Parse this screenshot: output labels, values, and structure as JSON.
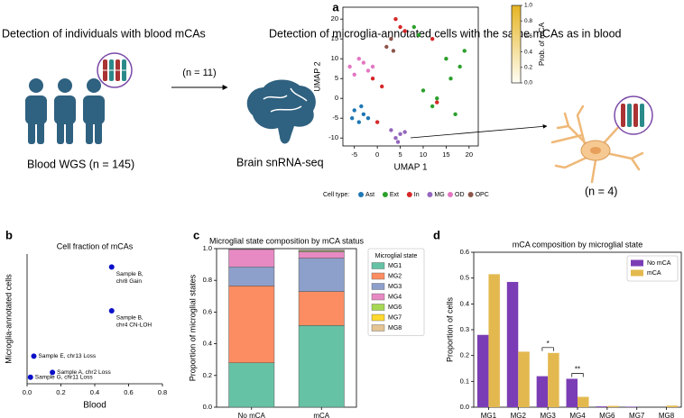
{
  "panel_labels": [
    "a",
    "b",
    "c",
    "d"
  ],
  "panel_a": {
    "left_heading": "Detection of individuals with blood mCAs",
    "right_heading": "Detection of microglia-annotated cells with the same mCAs as in blood",
    "blood_label": "Blood WGS (n = 145)",
    "arrow_label": "(n = 11)",
    "brain_label": "Brain snRNA-seq",
    "neuron_label": "(n = 4)"
  },
  "chart_data": [
    {
      "type": "scatter",
      "x_label": "UMAP 1",
      "y_label": "UMAP 2",
      "xlim": [
        -7.5,
        22
      ],
      "ylim": [
        -12,
        23
      ],
      "xticks": [
        -5,
        0,
        5,
        10,
        15,
        20
      ],
      "yticks": [
        -10,
        -5,
        0,
        5,
        10,
        15,
        20
      ],
      "legend_title": "Cell type:",
      "series": [
        {
          "name": "Ast",
          "color": "#1f77b4",
          "x": [
            -5,
            -3,
            -4,
            -2,
            -5.5,
            -3.5
          ],
          "y": [
            -3,
            -4,
            -6,
            -5,
            -5,
            -2
          ]
        },
        {
          "name": "Ext",
          "color": "#2ca02c",
          "x": [
            10,
            13,
            16,
            18,
            12,
            15,
            17,
            8,
            9,
            19
          ],
          "y": [
            2,
            0,
            5,
            8,
            -2,
            10,
            -4,
            18,
            16,
            12
          ]
        },
        {
          "name": "In",
          "color": "#d62728",
          "x": [
            4,
            6,
            5,
            -1,
            1,
            12,
            13,
            0
          ],
          "y": [
            20,
            17,
            18,
            5,
            3,
            15,
            -1,
            -6
          ]
        },
        {
          "name": "MG",
          "color": "#9467bd",
          "x": [
            3,
            4,
            5,
            6,
            4.5
          ],
          "y": [
            -8,
            -10,
            -9,
            -8.5,
            -11
          ]
        },
        {
          "name": "OD",
          "color": "#e377c2",
          "x": [
            -6,
            -4,
            -2,
            -5,
            -3,
            -1
          ],
          "y": [
            8,
            10,
            7,
            6,
            9,
            8
          ]
        },
        {
          "name": "OPC",
          "color": "#8c564b",
          "x": [
            2,
            3,
            3.5
          ],
          "y": [
            13,
            15,
            12
          ]
        }
      ],
      "colorbar": {
        "label": "Prob. of mCA",
        "lim": [
          0,
          1
        ],
        "colors": [
          "#fffef5",
          "#e6b423"
        ],
        "ticks": [
          {
            "value": 0,
            "label": "0.0"
          },
          0.2,
          0.4,
          0.6,
          0.8,
          {
            "value": 1,
            "label": "1.0"
          }
        ]
      }
    },
    {
      "type": "scatter",
      "title": "Cell fraction of mCAs",
      "x_label": "Blood",
      "y_label": "Microglia-annotated cells",
      "xlim": [
        0,
        0.8
      ],
      "ylim": [
        0,
        0.8
      ],
      "xticks": [
        {
          "value": 0,
          "label": "0.0"
        },
        0.2,
        0.4,
        0.6,
        0.8
      ],
      "series": [
        {
          "color": "#0a10c8",
          "x": [
            0.5,
            0.5,
            0.04,
            0.15,
            0.02
          ],
          "y": [
            0.72,
            0.45,
            0.17,
            0.07,
            0.04
          ],
          "point_labels": [
            [
              "Sample B,",
              "chr8 Gain"
            ],
            [
              "Sample B,",
              "chr4 CN-LOH"
            ],
            [
              "Sample E, chr13 Loss"
            ],
            [
              "Sample A, chr2 Loss"
            ],
            [
              "Sample G, chr11 Loss"
            ]
          ]
        }
      ]
    },
    {
      "type": "bar",
      "stacked": true,
      "title": "Microglial state composition by mCA status",
      "y_label": "Proportion of microglial states",
      "categories": [
        "No mCA",
        "mCA"
      ],
      "ylim": [
        0,
        1
      ],
      "yticks": [
        {
          "value": 0,
          "label": "0.0"
        },
        0.2,
        0.4,
        0.6,
        0.8,
        {
          "value": 1,
          "label": "1.0"
        }
      ],
      "legend": "outside right",
      "legend_title": "Microglial state",
      "series": [
        {
          "name": "MG1",
          "color": "#66c2a5",
          "values": [
            0.28,
            0.515
          ]
        },
        {
          "name": "MG2",
          "color": "#fc8d62",
          "values": [
            0.485,
            0.215
          ]
        },
        {
          "name": "MG3",
          "color": "#8da0cb",
          "values": [
            0.12,
            0.21
          ]
        },
        {
          "name": "MG4",
          "color": "#e78ac3",
          "values": [
            0.11,
            0.04
          ]
        },
        {
          "name": "MG6",
          "color": "#a6d854",
          "values": [
            0.003,
            0.005
          ]
        },
        {
          "name": "MG7",
          "color": "#ffd92f",
          "values": [
            0.002,
            0
          ]
        },
        {
          "name": "MG8",
          "color": "#e5c494",
          "values": [
            0,
            0.006
          ]
        }
      ]
    },
    {
      "type": "bar",
      "stacked": false,
      "title": "mCA composition by microglial state",
      "y_label": "Proportion of cells",
      "categories": [
        "MG1",
        "MG2",
        "MG3",
        "MG4",
        "MG6",
        "MG7",
        "MG8"
      ],
      "ylim": [
        0,
        0.6
      ],
      "yticks": [
        {
          "value": 0,
          "label": "0.0"
        },
        0.1,
        0.2,
        0.3,
        0.4,
        0.5,
        0.6
      ],
      "legend": "upper right",
      "series": [
        {
          "name": "No mCA",
          "color": "#7b3db5",
          "values": [
            0.28,
            0.485,
            0.12,
            0.11,
            0.003,
            0.002,
            0
          ]
        },
        {
          "name": "mCA",
          "color": "#e3b94f",
          "values": [
            0.515,
            0.215,
            0.21,
            0.04,
            0.005,
            0,
            0.006
          ]
        }
      ],
      "annotations": [
        {
          "label": "*",
          "category": "MG3"
        },
        {
          "label": "**",
          "category": "MG4"
        }
      ]
    }
  ]
}
